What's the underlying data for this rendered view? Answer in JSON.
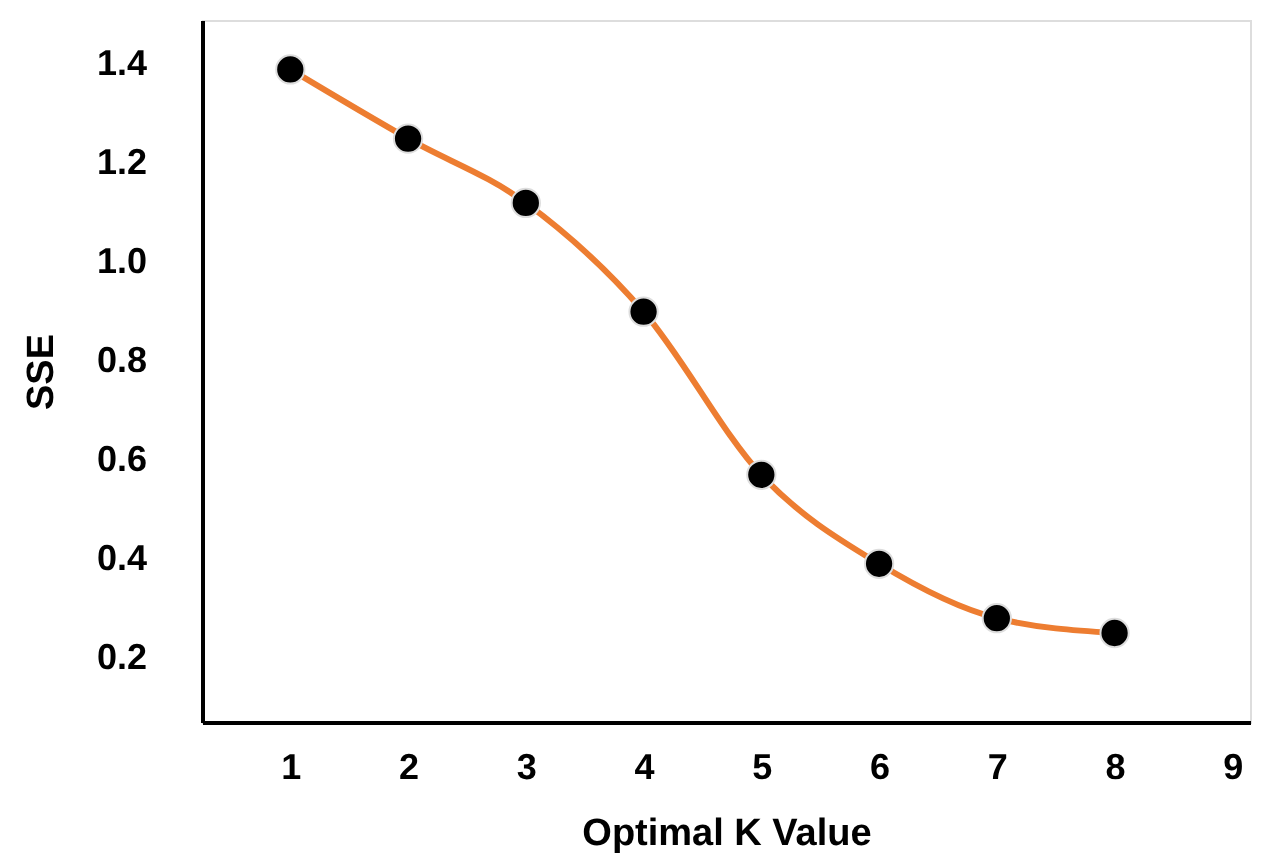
{
  "chart_data": {
    "type": "line",
    "xlabel": "Optimal K Value",
    "ylabel": "SSE",
    "x": [
      1,
      2,
      3,
      4,
      5,
      6,
      7,
      8
    ],
    "series": [
      {
        "color": "#ed7d31",
        "values": [
          1.39,
          1.25,
          1.12,
          0.9,
          0.57,
          0.39,
          0.28,
          0.25
        ]
      }
    ],
    "xlim": [
      0.25,
      9.15
    ],
    "xticks": [
      1,
      2,
      3,
      4,
      5,
      6,
      7,
      8,
      9
    ],
    "ylim": [
      0.07,
      1.49
    ],
    "yticks": [
      {
        "value": 0.2,
        "label": "0.2"
      },
      {
        "value": 0.4,
        "label": "0.4"
      },
      {
        "value": 0.6,
        "label": "0.6"
      },
      {
        "value": 0.8,
        "label": "0.8"
      },
      {
        "value": 1.0,
        "label": "1.0"
      },
      {
        "value": 1.2,
        "label": "1.2"
      },
      {
        "value": 1.4,
        "label": "1.4"
      }
    ],
    "grid": false,
    "marker": "circle",
    "line_style": "solid"
  }
}
